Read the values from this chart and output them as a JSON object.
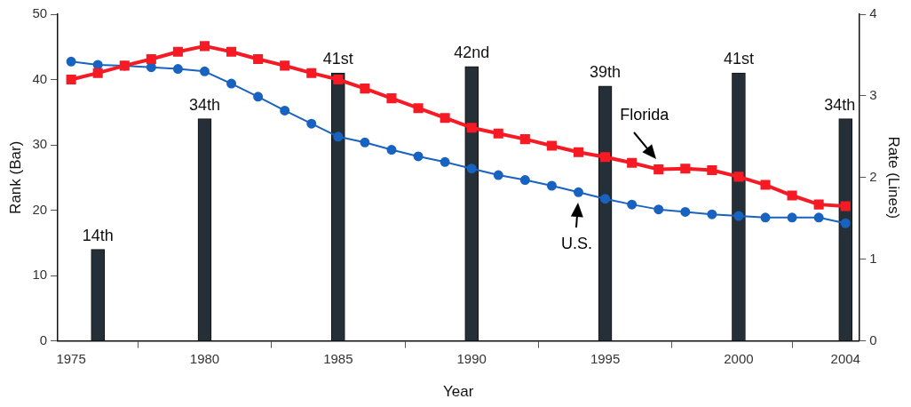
{
  "chart_data": {
    "type": "bar",
    "xlabel": "Year",
    "ylabel": "Rank (Bar)",
    "y2label": "Rate (Lines)",
    "xlim": [
      1974.5,
      2004.5
    ],
    "xticks": [
      1975,
      1980,
      1985,
      1990,
      1995,
      2000,
      2004
    ],
    "ylim": [
      0,
      50
    ],
    "yticks": [
      0,
      10,
      20,
      30,
      40,
      50
    ],
    "y2lim": [
      0,
      4
    ],
    "y2ticks": [
      0,
      1,
      2,
      3,
      4
    ],
    "grid": false,
    "legend": false,
    "series": [
      {
        "color": "#252f38",
        "x": [
          1976,
          1980,
          1985,
          1990,
          1995,
          2000,
          2004
        ],
        "values": [
          14,
          34,
          41,
          42,
          39,
          41,
          34
        ],
        "value_labels": [
          "14th",
          "34th",
          "41st",
          "42nd",
          "39th",
          "41st",
          "34th"
        ]
      },
      {
        "type": "line",
        "name": "Florida",
        "axis": "y2",
        "color": "#f51a24",
        "marker": "square",
        "x": [
          1975,
          1976,
          1977,
          1978,
          1979,
          1980,
          1981,
          1982,
          1983,
          1984,
          1985,
          1986,
          1987,
          1988,
          1989,
          1990,
          1991,
          1992,
          1993,
          1994,
          1995,
          1996,
          1997,
          1998,
          1999,
          2000,
          2001,
          2002,
          2003,
          2004
        ],
        "values": [
          3.2,
          3.28,
          3.37,
          3.45,
          3.54,
          3.61,
          3.54,
          3.45,
          3.37,
          3.28,
          3.2,
          3.09,
          2.97,
          2.85,
          2.73,
          2.61,
          2.54,
          2.47,
          2.39,
          2.31,
          2.25,
          2.18,
          2.1,
          2.11,
          2.09,
          2.01,
          1.91,
          1.78,
          1.67,
          1.65
        ]
      },
      {
        "type": "line",
        "name": "U.S.",
        "axis": "y2",
        "color": "#1862c0",
        "marker": "circle",
        "x": [
          1975,
          1976,
          1977,
          1978,
          1979,
          1980,
          1981,
          1982,
          1983,
          1984,
          1985,
          1986,
          1987,
          1988,
          1989,
          1990,
          1991,
          1992,
          1993,
          1994,
          1995,
          1996,
          1997,
          1998,
          1999,
          2000,
          2001,
          2002,
          2003,
          2004
        ],
        "values": [
          3.42,
          3.38,
          3.37,
          3.35,
          3.33,
          3.3,
          3.15,
          2.99,
          2.82,
          2.66,
          2.5,
          2.43,
          2.34,
          2.26,
          2.19,
          2.11,
          2.03,
          1.97,
          1.9,
          1.82,
          1.74,
          1.67,
          1.61,
          1.58,
          1.55,
          1.53,
          1.51,
          1.51,
          1.51,
          1.44
        ]
      }
    ]
  }
}
